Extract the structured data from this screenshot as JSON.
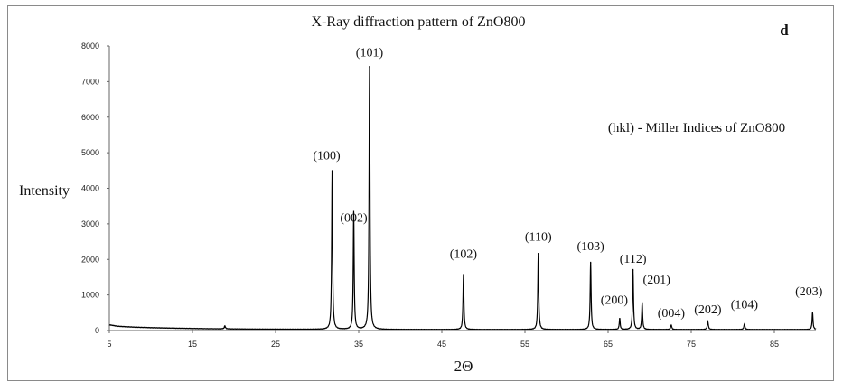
{
  "chart_data": {
    "type": "line",
    "title": "X-Ray diffraction pattern of ZnO800",
    "panel_label": "d",
    "legend_note": "(hkl) - Miller Indices of ZnO800",
    "xlabel": "2Θ",
    "ylabel": "Intensity",
    "xlim": [
      5,
      90
    ],
    "ylim": [
      0,
      8000
    ],
    "x_ticks": [
      5,
      15,
      25,
      35,
      45,
      55,
      65,
      75,
      85
    ],
    "y_ticks": [
      0,
      1000,
      2000,
      3000,
      4000,
      5000,
      6000,
      7000,
      8000
    ],
    "grid": false,
    "series": [
      {
        "color": "#000000",
        "baseline": [
          [
            5,
            160
          ],
          [
            6,
            120
          ],
          [
            8,
            95
          ],
          [
            10,
            80
          ],
          [
            13,
            65
          ],
          [
            17,
            50
          ],
          [
            22,
            40
          ],
          [
            28,
            35
          ],
          [
            35,
            30
          ],
          [
            45,
            28
          ],
          [
            60,
            28
          ],
          [
            75,
            28
          ],
          [
            90,
            28
          ]
        ],
        "peaks": [
          {
            "x": 18.9,
            "y": 90,
            "w": 0.15
          },
          {
            "x": 31.8,
            "y": 4480,
            "w": 0.13
          },
          {
            "x": 34.4,
            "y": 3320,
            "w": 0.13
          },
          {
            "x": 36.3,
            "y": 7400,
            "w": 0.13
          },
          {
            "x": 47.6,
            "y": 1560,
            "w": 0.13
          },
          {
            "x": 56.6,
            "y": 2150,
            "w": 0.13
          },
          {
            "x": 62.9,
            "y": 1900,
            "w": 0.13
          },
          {
            "x": 66.4,
            "y": 320,
            "w": 0.13
          },
          {
            "x": 68.0,
            "y": 1700,
            "w": 0.13
          },
          {
            "x": 69.1,
            "y": 760,
            "w": 0.13
          },
          {
            "x": 72.6,
            "y": 130,
            "w": 0.15
          },
          {
            "x": 77.0,
            "y": 230,
            "w": 0.15
          },
          {
            "x": 81.4,
            "y": 160,
            "w": 0.15
          },
          {
            "x": 89.6,
            "y": 480,
            "w": 0.13
          }
        ]
      }
    ],
    "annotations": [
      {
        "text": "(100)",
        "x": 31.8,
        "y": 4480
      },
      {
        "text": "(002)",
        "x": 34.4,
        "y": 3320
      },
      {
        "text": "(101)",
        "x": 36.3,
        "y": 7400
      },
      {
        "text": "(102)",
        "x": 47.6,
        "y": 1560
      },
      {
        "text": "(110)",
        "x": 56.6,
        "y": 2150
      },
      {
        "text": "(103)",
        "x": 62.9,
        "y": 1900
      },
      {
        "text": "(200)",
        "x": 66.4,
        "y": 320
      },
      {
        "text": "(112)",
        "x": 68.0,
        "y": 1700
      },
      {
        "text": "(201)",
        "x": 69.1,
        "y": 760
      },
      {
        "text": "(004)",
        "x": 72.6,
        "y": 130
      },
      {
        "text": "(202)",
        "x": 77.0,
        "y": 230
      },
      {
        "text": "(104)",
        "x": 81.4,
        "y": 160
      },
      {
        "text": "(203)",
        "x": 89.6,
        "y": 480
      }
    ]
  }
}
